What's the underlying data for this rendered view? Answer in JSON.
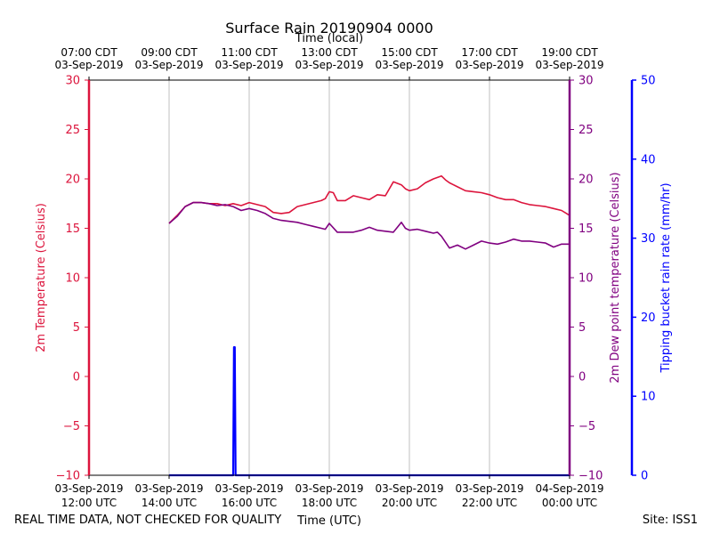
{
  "chart_data": {
    "type": "line",
    "title": "Surface Rain 20190904 0000",
    "top_axis_label": "Time (local)",
    "xlabel": "Time (UTC)",
    "ylabel_left": "2m Temperature (Celsius)",
    "ylabel_right1": "2m Dew point temperature (Celsius)",
    "ylabel_right2": "Tipping bucket rain rate (mm/hr)",
    "footer_left": "REAL TIME DATA, NOT CHECKED FOR QUALITY",
    "footer_right": "Site: ISS1",
    "x_range_hours_utc": [
      12,
      24
    ],
    "ylim_temperature": [
      -10,
      30
    ],
    "ylim_rain_rate": [
      0,
      50
    ],
    "x_ticks_bottom": [
      {
        "hour": 12,
        "line1": "03-Sep-2019",
        "line2": "12:00 UTC"
      },
      {
        "hour": 14,
        "line1": "03-Sep-2019",
        "line2": "14:00 UTC"
      },
      {
        "hour": 16,
        "line1": "03-Sep-2019",
        "line2": "16:00 UTC"
      },
      {
        "hour": 18,
        "line1": "03-Sep-2019",
        "line2": "18:00 UTC"
      },
      {
        "hour": 20,
        "line1": "03-Sep-2019",
        "line2": "20:00 UTC"
      },
      {
        "hour": 22,
        "line1": "03-Sep-2019",
        "line2": "22:00 UTC"
      },
      {
        "hour": 24,
        "line1": "04-Sep-2019",
        "line2": "00:00 UTC"
      }
    ],
    "x_ticks_top": [
      {
        "hour": 12,
        "line1": "07:00 CDT",
        "line2": "03-Sep-2019"
      },
      {
        "hour": 14,
        "line1": "09:00 CDT",
        "line2": "03-Sep-2019"
      },
      {
        "hour": 16,
        "line1": "11:00 CDT",
        "line2": "03-Sep-2019"
      },
      {
        "hour": 18,
        "line1": "13:00 CDT",
        "line2": "03-Sep-2019"
      },
      {
        "hour": 20,
        "line1": "15:00 CDT",
        "line2": "03-Sep-2019"
      },
      {
        "hour": 22,
        "line1": "17:00 CDT",
        "line2": "03-Sep-2019"
      },
      {
        "hour": 24,
        "line1": "19:00 CDT",
        "line2": "03-Sep-2019"
      }
    ],
    "y_ticks_temperature": [
      -10,
      -5,
      0,
      5,
      10,
      15,
      20,
      25,
      30
    ],
    "y_tick_labels_temperature": [
      "−10",
      "−5",
      "0",
      "5",
      "10",
      "15",
      "20",
      "25",
      "30"
    ],
    "y_ticks_rain": [
      0,
      10,
      20,
      30,
      40,
      50
    ],
    "vertical_grid_hours": [
      14,
      16,
      18,
      20,
      22
    ],
    "colors": {
      "temperature": "#dc143c",
      "dewpoint": "#800080",
      "rain": "#0000ff",
      "grid": "#b0b0b0",
      "frame": "#000000"
    },
    "series": [
      {
        "name": "2m Temperature",
        "axis": "temperature",
        "x_hours": [
          14.0,
          14.2,
          14.4,
          14.6,
          14.8,
          15.0,
          15.2,
          15.4,
          15.6,
          15.8,
          16.0,
          16.2,
          16.4,
          16.6,
          16.8,
          17.0,
          17.2,
          17.4,
          17.6,
          17.8,
          17.9,
          18.0,
          18.1,
          18.2,
          18.4,
          18.6,
          18.8,
          19.0,
          19.2,
          19.4,
          19.6,
          19.8,
          19.9,
          20.0,
          20.2,
          20.4,
          20.6,
          20.8,
          20.9,
          21.0,
          21.2,
          21.4,
          21.6,
          21.8,
          22.0,
          22.2,
          22.4,
          22.6,
          22.8,
          23.0,
          23.2,
          23.4,
          23.6,
          23.8,
          24.0
        ],
        "values": [
          15.5,
          16.3,
          17.2,
          17.6,
          17.6,
          17.5,
          17.5,
          17.3,
          17.5,
          17.3,
          17.6,
          17.4,
          17.2,
          16.6,
          16.5,
          16.6,
          17.2,
          17.4,
          17.6,
          17.8,
          18.0,
          18.7,
          18.6,
          17.8,
          17.8,
          18.3,
          18.1,
          17.9,
          18.4,
          18.3,
          19.7,
          19.4,
          19.0,
          18.8,
          19.0,
          19.6,
          20.0,
          20.3,
          19.9,
          19.6,
          19.2,
          18.8,
          18.7,
          18.6,
          18.4,
          18.1,
          17.9,
          17.9,
          17.6,
          17.4,
          17.3,
          17.2,
          17.0,
          16.8,
          16.3
        ]
      },
      {
        "name": "2m Dew point temperature",
        "axis": "temperature",
        "x_hours": [
          14.0,
          14.2,
          14.4,
          14.6,
          14.8,
          15.0,
          15.2,
          15.4,
          15.6,
          15.8,
          16.0,
          16.2,
          16.4,
          16.6,
          16.8,
          17.0,
          17.2,
          17.4,
          17.6,
          17.8,
          17.9,
          18.0,
          18.2,
          18.4,
          18.6,
          18.8,
          19.0,
          19.2,
          19.4,
          19.6,
          19.8,
          19.9,
          20.0,
          20.2,
          20.4,
          20.6,
          20.7,
          20.8,
          21.0,
          21.2,
          21.4,
          21.6,
          21.8,
          22.0,
          22.2,
          22.4,
          22.6,
          22.8,
          23.0,
          23.2,
          23.4,
          23.6,
          23.8,
          24.0
        ],
        "values": [
          15.5,
          16.2,
          17.2,
          17.6,
          17.6,
          17.5,
          17.3,
          17.4,
          17.2,
          16.8,
          17.0,
          16.8,
          16.5,
          16.0,
          15.8,
          15.7,
          15.6,
          15.4,
          15.2,
          15.0,
          14.9,
          15.5,
          14.6,
          14.6,
          14.6,
          14.8,
          15.1,
          14.8,
          14.7,
          14.6,
          15.6,
          15.0,
          14.8,
          14.9,
          14.7,
          14.5,
          14.6,
          14.2,
          13.0,
          13.3,
          12.9,
          13.3,
          13.7,
          13.5,
          13.4,
          13.6,
          13.9,
          13.7,
          13.7,
          13.6,
          13.5,
          13.1,
          13.4,
          13.4
        ]
      },
      {
        "name": "Tipping bucket rain rate",
        "axis": "rain_rate",
        "x_hours": [
          14.0,
          15.0,
          15.6,
          15.62,
          15.64,
          15.66,
          16.0,
          18.0,
          20.0,
          22.0,
          24.0
        ],
        "values": [
          0,
          0,
          0,
          16.2,
          16.2,
          0,
          0,
          0,
          0,
          0,
          0
        ]
      }
    ]
  }
}
